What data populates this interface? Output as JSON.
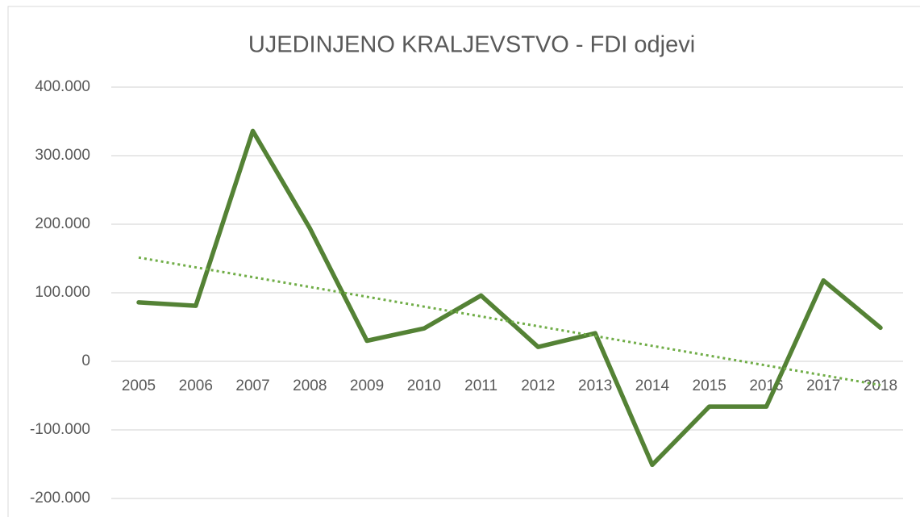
{
  "chart_data": {
    "type": "line",
    "title": "UJEDINJENO KRALJEVSTVO - FDI odjevi",
    "categories": [
      "2005",
      "2006",
      "2007",
      "2008",
      "2009",
      "2010",
      "2011",
      "2012",
      "2013",
      "2014",
      "2015",
      "2016",
      "2017",
      "2018"
    ],
    "series": [
      {
        "name": "FDI odjevi",
        "color": "#548235",
        "values": [
          86000,
          81000,
          336000,
          194000,
          30000,
          48000,
          96000,
          21000,
          41000,
          -151000,
          -66000,
          -66000,
          118000,
          49000
        ]
      }
    ],
    "trendline": "linear",
    "trendline_color": "#70ad47",
    "ylim": [
      -200000,
      400000
    ],
    "yticks": [
      {
        "value": -200000,
        "label": "-200.000"
      },
      {
        "value": -100000,
        "label": "-100.000"
      },
      0,
      {
        "value": 100000,
        "label": "100.000"
      },
      {
        "value": 200000,
        "label": "200.000"
      },
      {
        "value": 300000,
        "label": "300.000"
      },
      {
        "value": 400000,
        "label": "400.000"
      }
    ],
    "grid": true
  }
}
